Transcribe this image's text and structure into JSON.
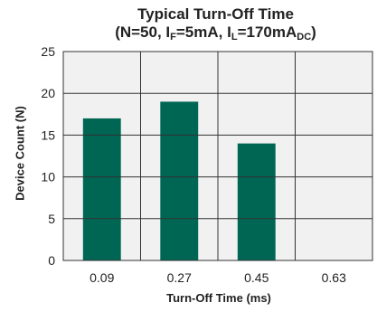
{
  "chart_data": {
    "type": "bar",
    "title_line1": "Typical Turn-Off Time",
    "title_line2": {
      "prefix": "(N=50, I",
      "sub1": "F",
      "mid1": "=5mA, I",
      "sub2": "L",
      "mid2": "=170mA",
      "sub3": "DC",
      "suffix": ")"
    },
    "xlabel": "Turn-Off Time (ms)",
    "ylabel": "Device Count (N)",
    "categories": [
      "0.09",
      "0.27",
      "0.45",
      "0.63"
    ],
    "values": [
      17,
      19,
      14,
      0
    ],
    "ylim": [
      0,
      25
    ],
    "yticks": [
      "0",
      "5",
      "10",
      "15",
      "20",
      "25"
    ],
    "grid": true,
    "bar_color": "#006654",
    "grid_color": "#333333",
    "plot_background": "#f1f1f1"
  }
}
